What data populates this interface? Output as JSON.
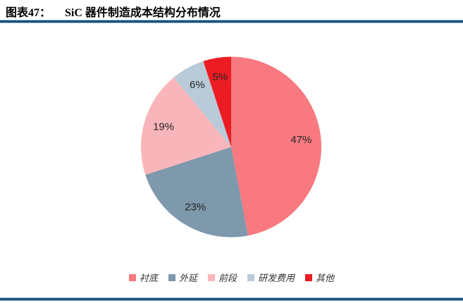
{
  "header": {
    "title_prefix": "图表47：",
    "title": "SiC 器件制造成本结构分布情况"
  },
  "chart_data": {
    "type": "pie",
    "title": "SiC 器件制造成本结构分布情况",
    "categories": [
      "衬底",
      "外延",
      "前段",
      "研发费用",
      "其他"
    ],
    "values": [
      47,
      23,
      19,
      6,
      5
    ],
    "data_labels": [
      "47%",
      "23%",
      "19%",
      "6%",
      "5%"
    ],
    "colors": [
      "#F8797F",
      "#7E98AC",
      "#F9B6BA",
      "#B9CAD8",
      "#EC1C23"
    ],
    "start_angle_deg": 0,
    "direction": "clockwise",
    "legend_position": "bottom",
    "data_label_color": "#262626"
  },
  "styling": {
    "separator_dark": "#1F4E79",
    "separator_light": "#8FBADC",
    "background": "#FFFFFF",
    "legend_text_color": "#333333"
  }
}
